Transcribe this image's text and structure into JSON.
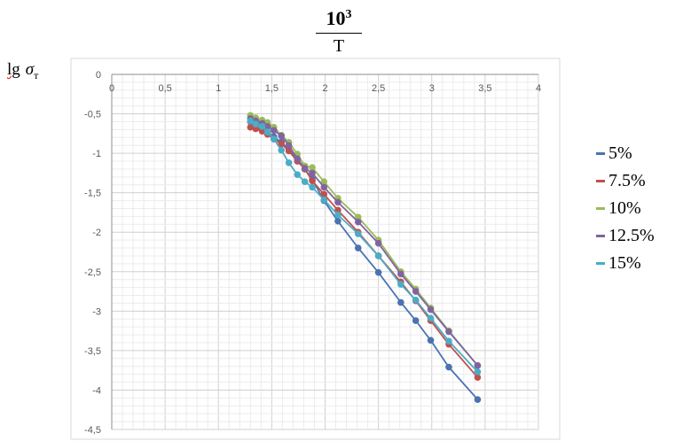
{
  "chart_data": {
    "type": "line",
    "title": {
      "numerator_base": "10",
      "numerator_exp": "3",
      "denominator": "T"
    },
    "ylabel": {
      "prefix": "lg",
      "symbol": "σ",
      "subscript": "т"
    },
    "xlim": [
      0,
      4
    ],
    "ylim": [
      -4.5,
      0
    ],
    "x_ticks": [
      "0",
      "0,5",
      "1",
      "1,5",
      "2",
      "2,5",
      "3",
      "3,5",
      "4"
    ],
    "y_ticks": [
      "0",
      "-0,5",
      "-1",
      "-1,5",
      "-2",
      "-2,5",
      "-3",
      "-3,5",
      "-4",
      "-4,5"
    ],
    "grid": true,
    "legend_position": "right",
    "x": [
      1.3,
      1.35,
      1.41,
      1.46,
      1.52,
      1.59,
      1.66,
      1.74,
      1.81,
      1.88,
      1.99,
      2.12,
      2.31,
      2.5,
      2.71,
      2.85,
      2.99,
      3.16,
      3.43
    ],
    "series": [
      {
        "name": "5%",
        "color": "#4a73b0",
        "values": [
          -0.6,
          -0.63,
          -0.68,
          -0.73,
          -0.79,
          -0.86,
          -0.95,
          -1.07,
          -1.2,
          -1.33,
          -1.6,
          -1.86,
          -2.2,
          -2.51,
          -2.89,
          -3.12,
          -3.37,
          -3.71,
          -4.12
        ]
      },
      {
        "name": "7.5%",
        "color": "#c0504d",
        "values": [
          -0.67,
          -0.69,
          -0.72,
          -0.76,
          -0.82,
          -0.88,
          -0.97,
          -1.1,
          -1.2,
          -1.35,
          -1.52,
          -1.72,
          -2.0,
          -2.3,
          -2.63,
          -2.87,
          -3.12,
          -3.42,
          -3.84
        ]
      },
      {
        "name": "10%",
        "color": "#9bbb59",
        "values": [
          -0.52,
          -0.55,
          -0.58,
          -0.61,
          -0.67,
          -0.77,
          -0.86,
          -1.01,
          -1.16,
          -1.18,
          -1.36,
          -1.57,
          -1.81,
          -2.1,
          -2.5,
          -2.72,
          -2.96,
          -3.25,
          -3.69
        ]
      },
      {
        "name": "12.5%",
        "color": "#8064a2",
        "values": [
          -0.56,
          -0.59,
          -0.62,
          -0.66,
          -0.71,
          -0.78,
          -0.9,
          -1.07,
          -1.19,
          -1.25,
          -1.43,
          -1.62,
          -1.87,
          -2.14,
          -2.53,
          -2.75,
          -2.98,
          -3.26,
          -3.69
        ]
      },
      {
        "name": "15%",
        "color": "#4bacc6",
        "values": [
          -0.59,
          -0.63,
          -0.66,
          -0.73,
          -0.82,
          -0.96,
          -1.12,
          -1.27,
          -1.36,
          -1.43,
          -1.59,
          -1.78,
          -2.02,
          -2.3,
          -2.66,
          -2.86,
          -3.09,
          -3.38,
          -3.77
        ]
      }
    ]
  }
}
